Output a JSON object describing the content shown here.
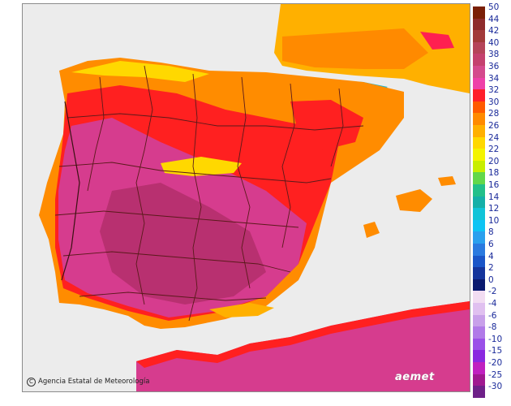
{
  "credit": {
    "symbol": "C",
    "text": "Agencia Estatal de Meteorología"
  },
  "logo": "aemet",
  "legend": {
    "ticks": [
      "50",
      "44",
      "42",
      "40",
      "38",
      "36",
      "34",
      "32",
      "30",
      "28",
      "26",
      "24",
      "22",
      "20",
      "18",
      "16",
      "14",
      "12",
      "10",
      "8",
      "6",
      "4",
      "2",
      "0",
      "-2",
      "-4",
      "-6",
      "-8",
      "-10",
      "-15",
      "-20",
      "-25",
      "-30"
    ],
    "colors": [
      "#7a1f06",
      "#8e2b2b",
      "#a23a3a",
      "#b5445a",
      "#c4416e",
      "#d44a8c",
      "#ee40a8",
      "#ff1f2a",
      "#ff5a00",
      "#ff8a00",
      "#ffb000",
      "#ffd800",
      "#f4f400",
      "#c8ee00",
      "#62d84a",
      "#22c08a",
      "#14b0a8",
      "#10c4d8",
      "#0ec4f4",
      "#2aa0ee",
      "#2a7ae0",
      "#1a55c8",
      "#14349c",
      "#0a1a70",
      "#f2dcf2",
      "#e0c0f0",
      "#c8a0ea",
      "#b07ae8",
      "#9a50e8",
      "#8a28e0",
      "#c020c0",
      "#a01890",
      "#6e2088"
    ]
  },
  "map_colors": {
    "sea": "#ececec",
    "hot": "#d63c8e",
    "very_hot": "#c83a82",
    "warm": "#ff2020",
    "mild": "#ff8c00",
    "cool": "#ffb800",
    "cold": "#e8e800",
    "alpine": "#16b4d0",
    "border": "#5a1a1a"
  }
}
